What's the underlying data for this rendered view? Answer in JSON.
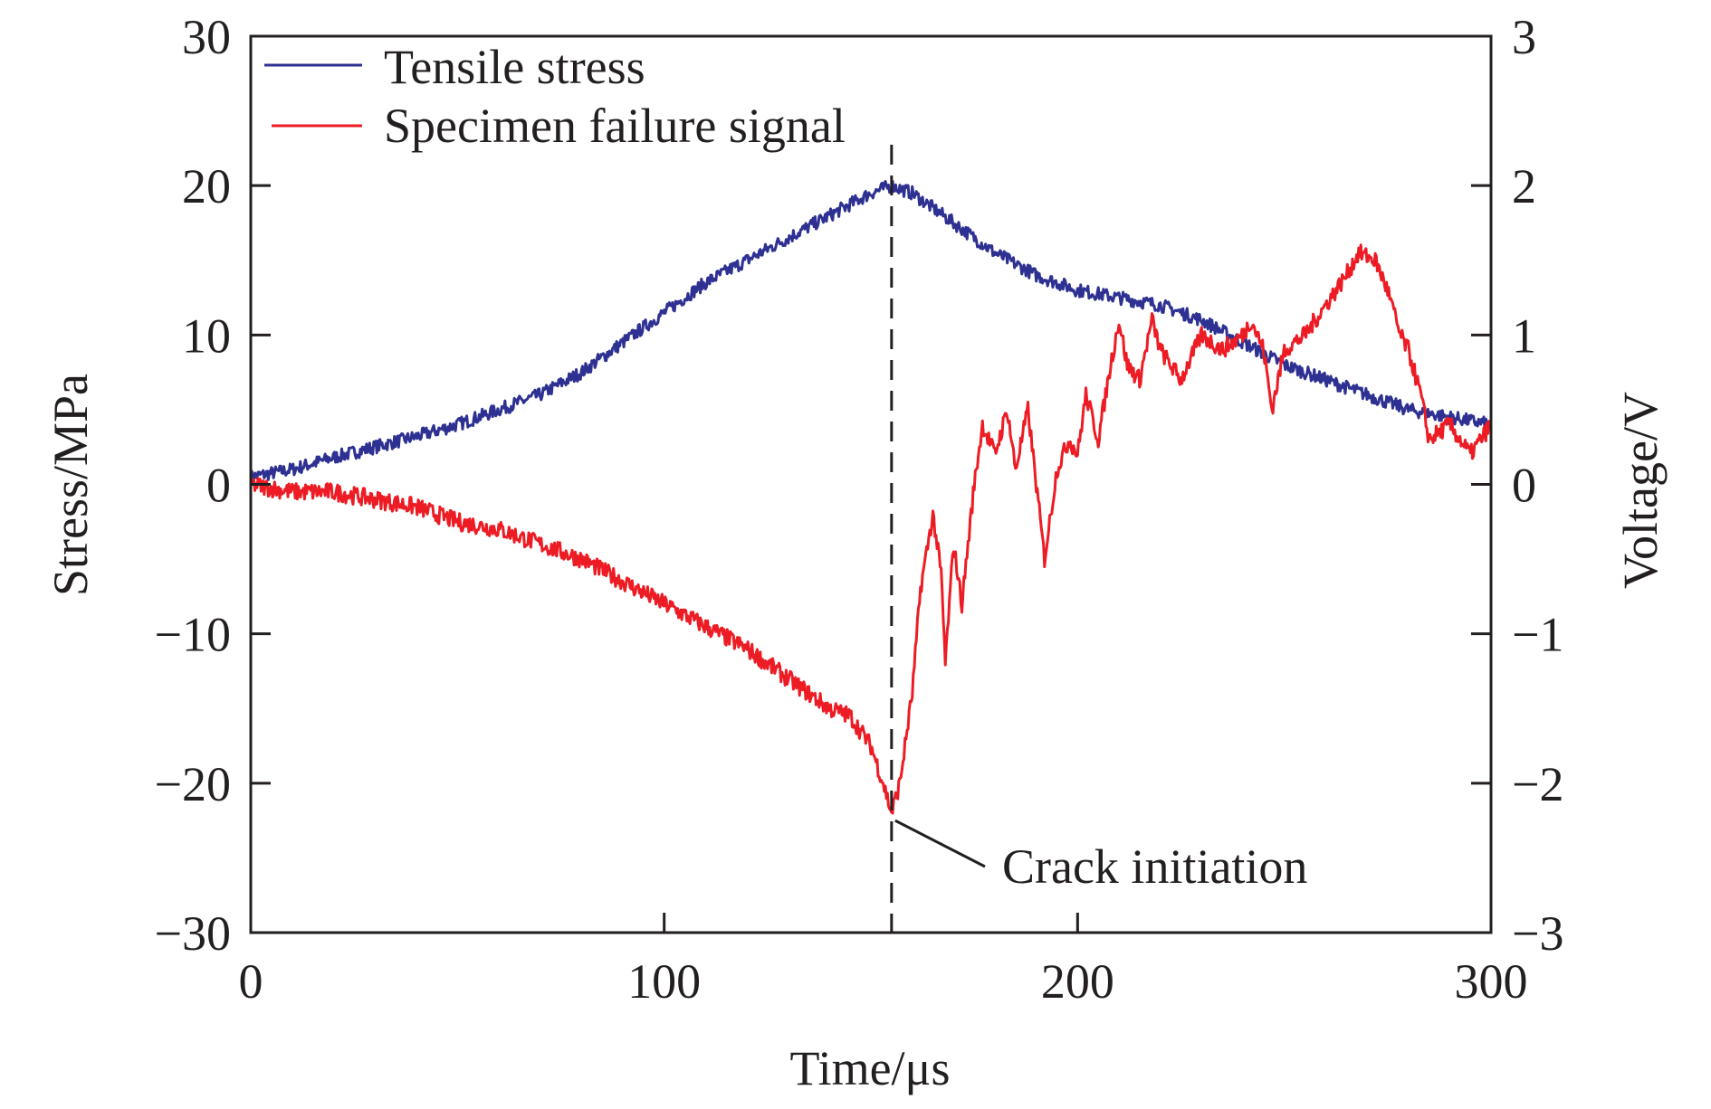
{
  "chart_data": {
    "type": "line",
    "xlabel": "Time/μs",
    "ylabel": "Stress/MPa",
    "y2label": "Voltage/V",
    "xlim": [
      0,
      300
    ],
    "ylim": [
      -30,
      30
    ],
    "y2lim": [
      -3,
      3
    ],
    "xticks": [
      "0",
      "100",
      "200",
      "300"
    ],
    "yticks": [
      "30",
      "20",
      "10",
      "0",
      "−10",
      "−20",
      "−30"
    ],
    "y2ticks": [
      "3",
      "2",
      "1",
      "0",
      "−1",
      "−2",
      "−3"
    ],
    "grid": false,
    "legend_position": "top-left",
    "series": [
      {
        "name": "Tensile stress",
        "axis": "left",
        "color": "#2e3192",
        "x": [
          0,
          10,
          20,
          30,
          40,
          50,
          60,
          70,
          80,
          90,
          100,
          110,
          120,
          130,
          140,
          150,
          155,
          160,
          170,
          180,
          190,
          200,
          210,
          220,
          230,
          240,
          250,
          260,
          270,
          280,
          290,
          300
        ],
        "y": [
          0.5,
          1,
          1.8,
          2.5,
          3.2,
          4,
          5,
          6,
          7.5,
          9.5,
          11.5,
          13.5,
          15,
          16.5,
          18,
          19.5,
          20,
          19.5,
          17.5,
          15.5,
          14,
          13,
          12.5,
          12,
          11,
          9.5,
          8,
          7,
          6,
          5,
          4.5,
          4
        ]
      },
      {
        "name": "Specimen failure signal",
        "axis": "right",
        "color": "#ed1c24",
        "x": [
          0,
          10,
          20,
          30,
          40,
          50,
          60,
          70,
          80,
          90,
          100,
          110,
          120,
          130,
          140,
          145,
          150,
          153,
          155,
          157,
          160,
          162,
          165,
          167,
          168,
          170,
          172,
          175,
          177,
          180,
          183,
          185,
          188,
          190,
          192,
          195,
          198,
          200,
          202,
          205,
          208,
          210,
          212,
          215,
          218,
          220,
          225,
          230,
          235,
          240,
          242,
          245,
          247,
          250,
          255,
          260,
          265,
          268,
          272,
          275,
          278,
          280,
          283,
          285,
          290,
          295,
          300
        ],
        "y": [
          0,
          -0.05,
          -0.05,
          -0.1,
          -0.15,
          -0.25,
          -0.3,
          -0.4,
          -0.5,
          -0.65,
          -0.8,
          -0.95,
          -1.1,
          -1.3,
          -1.5,
          -1.55,
          -1.75,
          -2.0,
          -2.2,
          -2.0,
          -1.4,
          -0.7,
          -0.2,
          -0.6,
          -1.2,
          -0.4,
          -0.8,
          0.0,
          0.4,
          0.2,
          0.5,
          0.1,
          0.5,
          0.0,
          -0.5,
          0.1,
          0.3,
          0.2,
          0.6,
          0.3,
          0.8,
          1.1,
          0.8,
          0.7,
          1.1,
          0.9,
          0.7,
          1.0,
          0.9,
          1.0,
          1.1,
          0.9,
          0.5,
          0.9,
          1.0,
          1.2,
          1.4,
          1.55,
          1.5,
          1.3,
          1.0,
          0.9,
          0.6,
          0.3,
          0.4,
          0.2,
          0.4
        ]
      }
    ],
    "marker_line": {
      "x": 155,
      "style": "dashed"
    },
    "annotation": {
      "text": "Crack initiation",
      "x": 155,
      "y2": -2.25
    }
  }
}
